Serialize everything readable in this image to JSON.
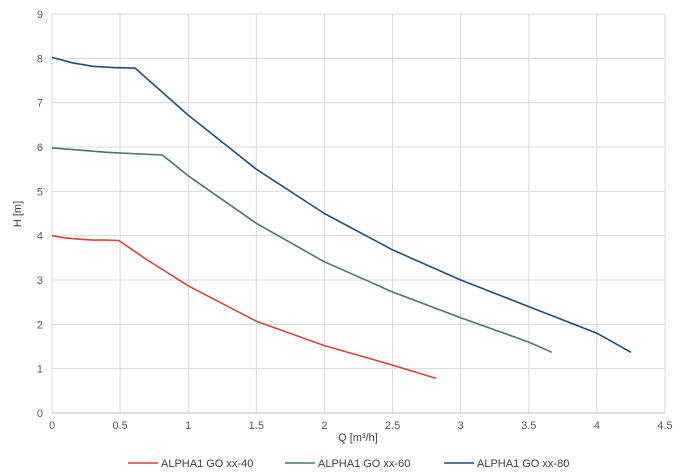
{
  "chart_data": {
    "type": "line",
    "xlabel": "Q [m³/h]",
    "ylabel": "H [m]",
    "xlim": [
      0,
      4.5
    ],
    "ylim": [
      0,
      9
    ],
    "xticks": [
      "0",
      "0.5",
      "1",
      "1.5",
      "2",
      "2.5",
      "3",
      "3.5",
      "4",
      "4.5"
    ],
    "yticks": [
      "0",
      "1",
      "2",
      "3",
      "4",
      "5",
      "6",
      "7",
      "8",
      "9"
    ],
    "grid": true,
    "legend_position": "bottom",
    "series": [
      {
        "name": "ALPHA1 GO xx-40",
        "color": "#d9433b",
        "x": [
          0,
          0.1,
          0.2,
          0.3,
          0.4,
          0.49,
          0.7,
          1.0,
          1.5,
          2.0,
          2.5,
          2.82
        ],
        "y": [
          4.0,
          3.95,
          3.92,
          3.9,
          3.9,
          3.89,
          3.45,
          2.87,
          2.07,
          1.52,
          1.08,
          0.78
        ]
      },
      {
        "name": "ALPHA1 GO xx-60",
        "color": "#4d7a5e",
        "x": [
          0,
          0.2,
          0.4,
          0.6,
          0.81,
          1.0,
          1.5,
          2.0,
          2.5,
          3.0,
          3.5,
          3.67
        ],
        "y": [
          5.98,
          5.93,
          5.88,
          5.85,
          5.82,
          5.35,
          4.28,
          3.41,
          2.73,
          2.15,
          1.6,
          1.37
        ]
      },
      {
        "name": "ALPHA1 GO xx-80",
        "color": "#1f4f7f",
        "x": [
          0,
          0.15,
          0.3,
          0.45,
          0.61,
          1.0,
          1.5,
          2.0,
          2.5,
          3.0,
          3.5,
          4.0,
          4.25
        ],
        "y": [
          8.02,
          7.9,
          7.82,
          7.79,
          7.78,
          6.72,
          5.5,
          4.5,
          3.68,
          3.0,
          2.4,
          1.8,
          1.37
        ]
      }
    ]
  }
}
